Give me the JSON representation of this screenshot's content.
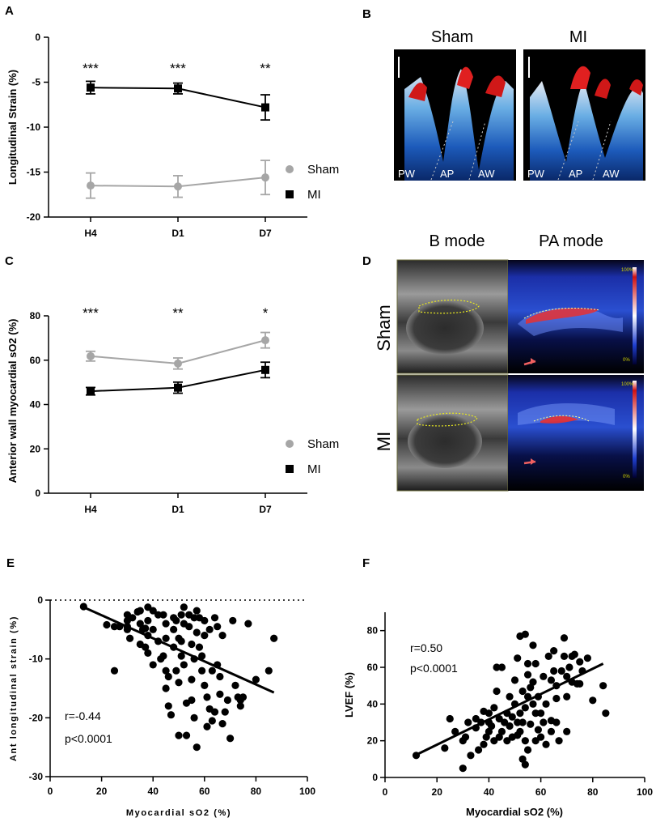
{
  "panels": {
    "A": "A",
    "B": "B",
    "C": "C",
    "D": "D",
    "E": "E",
    "F": "F"
  },
  "panel_b": {
    "titles": [
      "Sham",
      "MI"
    ],
    "wall_labels": [
      "PW",
      "AP",
      "AW"
    ]
  },
  "panel_d": {
    "col_titles": [
      "B mode",
      "PA mode"
    ],
    "row_labels": [
      "Sham",
      "MI"
    ],
    "scale_top": "100%",
    "scale_bottom": "0%"
  },
  "colors": {
    "sham": "#a6a6a6",
    "mi": "#000000"
  },
  "chart_data": [
    {
      "id": "A",
      "type": "line",
      "title": "",
      "xlabel": "",
      "ylabel": "Longitudinal Strain (%)",
      "categories": [
        "H4",
        "D1",
        "D7"
      ],
      "ylim": [
        -20,
        0
      ],
      "yticks": [
        0,
        -5,
        -10,
        -15,
        -20
      ],
      "series": [
        {
          "name": "Sham",
          "marker": "circle",
          "values": [
            -16.5,
            -16.6,
            -15.6
          ],
          "errors": [
            1.4,
            1.2,
            1.9
          ]
        },
        {
          "name": "MI",
          "marker": "square",
          "values": [
            -5.6,
            -5.7,
            -7.8
          ],
          "errors": [
            0.7,
            0.6,
            1.4
          ]
        }
      ],
      "significance": [
        "***",
        "***",
        "**"
      ],
      "legend": "right"
    },
    {
      "id": "C",
      "type": "line",
      "title": "",
      "xlabel": "",
      "ylabel": "Anterior wall myocardial sO2 (%)",
      "categories": [
        "H4",
        "D1",
        "D7"
      ],
      "ylim": [
        0,
        80
      ],
      "yticks": [
        0,
        20,
        40,
        60,
        80
      ],
      "series": [
        {
          "name": "Sham",
          "marker": "circle",
          "values": [
            61.8,
            58.5,
            69.0
          ],
          "errors": [
            2.2,
            2.5,
            3.5
          ]
        },
        {
          "name": "MI",
          "marker": "square",
          "values": [
            46.0,
            47.6,
            55.6
          ],
          "errors": [
            1.7,
            2.5,
            3.5
          ]
        }
      ],
      "significance": [
        "***",
        "**",
        "*"
      ],
      "legend": "right"
    },
    {
      "id": "E",
      "type": "scatter",
      "xlabel": "Myocardial sO2 (%)",
      "ylabel": "Ant longitudinal strain (%)",
      "xlim": [
        0,
        100
      ],
      "ylim": [
        -30,
        0
      ],
      "xticks": [
        0,
        20,
        40,
        60,
        80,
        100
      ],
      "yticks": [
        0,
        -10,
        -20,
        -30
      ],
      "annotation": [
        "r=-0.44",
        "p<0.0001"
      ],
      "fit": {
        "x": [
          13,
          87
        ],
        "y": [
          -1.2,
          -15.7
        ]
      },
      "points": [
        [
          13,
          -1.1
        ],
        [
          22,
          -4.2
        ],
        [
          25,
          -4.5
        ],
        [
          25,
          -12
        ],
        [
          27,
          -4.5
        ],
        [
          30,
          -2.5
        ],
        [
          30,
          -3.5
        ],
        [
          30,
          -4.5
        ],
        [
          30,
          -5
        ],
        [
          31,
          -6.5
        ],
        [
          32,
          -3
        ],
        [
          34,
          -2
        ],
        [
          35,
          -1.8
        ],
        [
          35,
          -4
        ],
        [
          35,
          -7.5
        ],
        [
          36,
          -5
        ],
        [
          37,
          -4.8
        ],
        [
          37,
          -8
        ],
        [
          38,
          -1.2
        ],
        [
          38,
          -3.5
        ],
        [
          38,
          -6
        ],
        [
          38,
          -9
        ],
        [
          40,
          -1.8
        ],
        [
          40,
          -5
        ],
        [
          40,
          -11
        ],
        [
          42,
          -2.5
        ],
        [
          42,
          -7
        ],
        [
          43,
          -10
        ],
        [
          44,
          -2.5
        ],
        [
          44,
          -9.5
        ],
        [
          45,
          -4
        ],
        [
          45,
          -6.5
        ],
        [
          45,
          -12
        ],
        [
          45,
          -15
        ],
        [
          46,
          -13
        ],
        [
          46,
          -18
        ],
        [
          47,
          -19.5
        ],
        [
          48,
          -3
        ],
        [
          48,
          -5
        ],
        [
          48,
          -8
        ],
        [
          49,
          -3.5
        ],
        [
          49,
          -12
        ],
        [
          50,
          -6.5
        ],
        [
          50,
          -14
        ],
        [
          50,
          -23
        ],
        [
          51,
          -2.5
        ],
        [
          51,
          -7
        ],
        [
          51,
          -9.5
        ],
        [
          52,
          -1.2
        ],
        [
          52,
          -4
        ],
        [
          52,
          -11
        ],
        [
          53,
          -17.5
        ],
        [
          53,
          -23
        ],
        [
          54,
          -2.5
        ],
        [
          54,
          -4.5
        ],
        [
          55,
          -7.5
        ],
        [
          55,
          -13.5
        ],
        [
          55,
          -17
        ],
        [
          56,
          -3
        ],
        [
          56,
          -10
        ],
        [
          56,
          -20
        ],
        [
          57,
          -1.8
        ],
        [
          57,
          -5.5
        ],
        [
          57,
          -25
        ],
        [
          58,
          -3
        ],
        [
          58,
          -8
        ],
        [
          59,
          -9.5
        ],
        [
          59,
          -12
        ],
        [
          60,
          -3.5
        ],
        [
          60,
          -6
        ],
        [
          60,
          -14.5
        ],
        [
          61,
          -16.5
        ],
        [
          61,
          -21.5
        ],
        [
          62,
          -5
        ],
        [
          62,
          -18.5
        ],
        [
          63,
          -12
        ],
        [
          63,
          -20.5
        ],
        [
          64,
          -3
        ],
        [
          64,
          -19
        ],
        [
          65,
          -4.5
        ],
        [
          65,
          -11
        ],
        [
          66,
          -13
        ],
        [
          66,
          -16
        ],
        [
          67,
          -6
        ],
        [
          67,
          -21
        ],
        [
          68,
          -19
        ],
        [
          69,
          -17
        ],
        [
          70,
          -23.5
        ],
        [
          71,
          -3.5
        ],
        [
          72,
          -14.5
        ],
        [
          73,
          -16.5
        ],
        [
          74,
          -18
        ],
        [
          74,
          -17
        ],
        [
          75,
          -16.5
        ],
        [
          77,
          -4
        ],
        [
          80,
          -13.5
        ],
        [
          85,
          -12
        ],
        [
          87,
          -6.5
        ]
      ]
    },
    {
      "id": "F",
      "type": "scatter",
      "xlabel": "Myocardial sO2 (%)",
      "ylabel": "LVEF (%)",
      "xlim": [
        0,
        100
      ],
      "ylim": [
        0,
        90
      ],
      "xticks": [
        0,
        20,
        40,
        60,
        80,
        100
      ],
      "yticks": [
        0,
        20,
        40,
        60,
        80
      ],
      "annotation": [
        "r=0.50",
        "p<0.0001"
      ],
      "fit": {
        "x": [
          13,
          84
        ],
        "y": [
          13,
          62
        ]
      },
      "points": [
        [
          12,
          12
        ],
        [
          23,
          16
        ],
        [
          25,
          32
        ],
        [
          27,
          25
        ],
        [
          30,
          5
        ],
        [
          30,
          20
        ],
        [
          31,
          22
        ],
        [
          32,
          30
        ],
        [
          33,
          12
        ],
        [
          35,
          27
        ],
        [
          35,
          32
        ],
        [
          36,
          15
        ],
        [
          37,
          30
        ],
        [
          38,
          18
        ],
        [
          38,
          36
        ],
        [
          39,
          22
        ],
        [
          40,
          25
        ],
        [
          40,
          30
        ],
        [
          40,
          35
        ],
        [
          41,
          28
        ],
        [
          42,
          20
        ],
        [
          42,
          38
        ],
        [
          43,
          47
        ],
        [
          43,
          60
        ],
        [
          44,
          22
        ],
        [
          44,
          32
        ],
        [
          45,
          25
        ],
        [
          45,
          60
        ],
        [
          46,
          30
        ],
        [
          47,
          20
        ],
        [
          47,
          35
        ],
        [
          48,
          28
        ],
        [
          48,
          44
        ],
        [
          49,
          22
        ],
        [
          49,
          33
        ],
        [
          50,
          40
        ],
        [
          50,
          53
        ],
        [
          51,
          23
        ],
        [
          51,
          30
        ],
        [
          51,
          65
        ],
        [
          52,
          25
        ],
        [
          52,
          35
        ],
        [
          52,
          77
        ],
        [
          53,
          10
        ],
        [
          53,
          30
        ],
        [
          53,
          47
        ],
        [
          54,
          7
        ],
        [
          54,
          20
        ],
        [
          54,
          38
        ],
        [
          54,
          78
        ],
        [
          55,
          15
        ],
        [
          55,
          44
        ],
        [
          55,
          56
        ],
        [
          55,
          62
        ],
        [
          56,
          29
        ],
        [
          56,
          49
        ],
        [
          57,
          40
        ],
        [
          57,
          52
        ],
        [
          57,
          72
        ],
        [
          58,
          20
        ],
        [
          58,
          35
        ],
        [
          58,
          62
        ],
        [
          59,
          26
        ],
        [
          59,
          44
        ],
        [
          60,
          22
        ],
        [
          60,
          35
        ],
        [
          61,
          30
        ],
        [
          61,
          55
        ],
        [
          62,
          18
        ],
        [
          62,
          40
        ],
        [
          63,
          66
        ],
        [
          64,
          25
        ],
        [
          64,
          31
        ],
        [
          64,
          53
        ],
        [
          65,
          58
        ],
        [
          65,
          69
        ],
        [
          66,
          30
        ],
        [
          66,
          43
        ],
        [
          66,
          50
        ],
        [
          67,
          20
        ],
        [
          68,
          58
        ],
        [
          69,
          66
        ],
        [
          69,
          76
        ],
        [
          70,
          25
        ],
        [
          70,
          44
        ],
        [
          70,
          55
        ],
        [
          71,
          60
        ],
        [
          72,
          52
        ],
        [
          72,
          66
        ],
        [
          73,
          67
        ],
        [
          74,
          51
        ],
        [
          75,
          63
        ],
        [
          75,
          51
        ],
        [
          76,
          58
        ],
        [
          78,
          65
        ],
        [
          80,
          42
        ],
        [
          85,
          35
        ],
        [
          84,
          50
        ]
      ]
    }
  ]
}
